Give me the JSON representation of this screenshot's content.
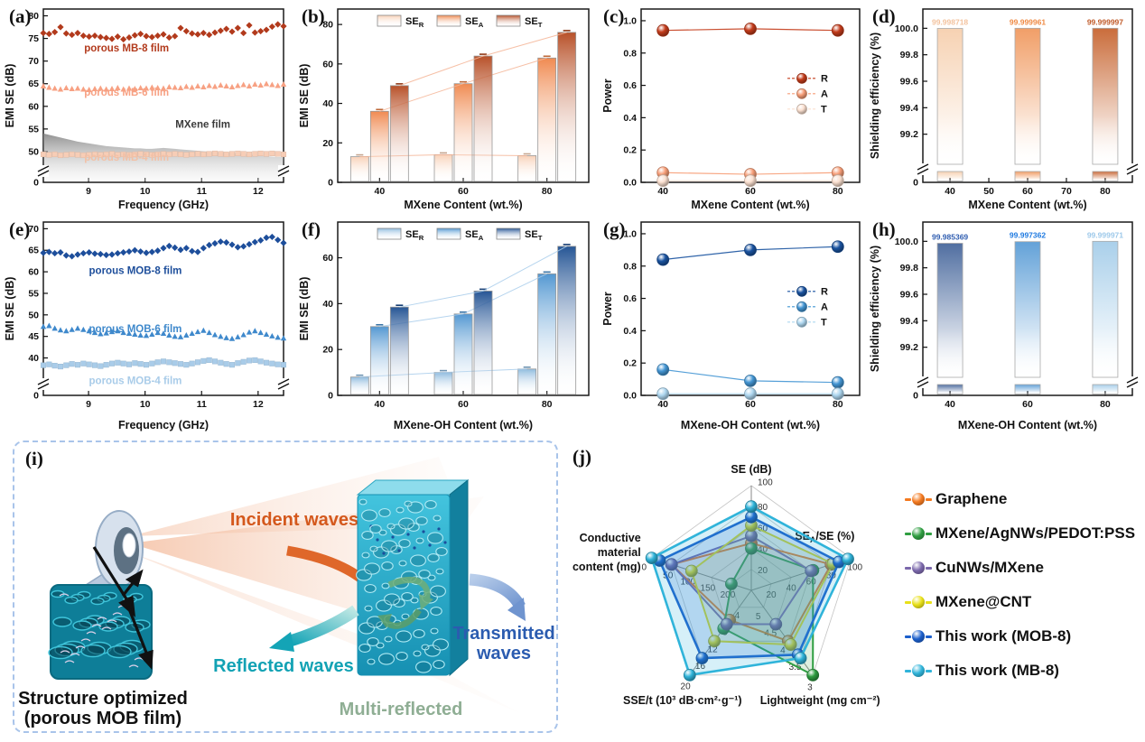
{
  "diagram": {
    "label": "(i)",
    "incident": "Incident waves",
    "reflected": "Reflected waves",
    "transmitted_line1": "Transmitted",
    "transmitted_line2": "waves",
    "multi_reflected": "Multi-reflected",
    "caption_line1": "Structure optimized",
    "caption_line2": "(porous MOB film)",
    "colors": {
      "incident": "#d4581c",
      "reflected": "#12a2b4",
      "transmitted": "#2b5cb0",
      "multi": "#8fae94",
      "border": "#a9c4ea"
    }
  },
  "chart_data": [
    {
      "id": "a",
      "type": "line",
      "panel": "(a)",
      "xlabel": "Frequency (GHz)",
      "ylabel": "EMI SE (dB)",
      "xrange": [
        8.2,
        12.45
      ],
      "xticks": [
        9,
        10,
        11,
        12
      ],
      "yticks": [
        50,
        55,
        60,
        65,
        70,
        75,
        80
      ],
      "yzero": "0",
      "ybreak": true,
      "series": [
        {
          "name": "porous MB-8  film",
          "marker": "diamond",
          "color": "#b23a1c",
          "values": [
            76.2,
            76.0,
            76.4,
            77.5,
            76.1,
            75.8,
            76.2,
            75.6,
            75.4,
            75.6,
            75.3,
            75.1,
            74.9,
            75.4,
            74.8,
            75.2,
            75.7,
            76.0,
            75.5,
            75.3,
            75.6,
            75.9,
            75.2,
            75.5,
            77.3,
            76.6,
            76.1,
            75.9,
            76.2,
            75.8,
            76.3,
            76.7,
            77.1,
            76.5,
            77.3,
            76.2,
            77.9,
            76.3,
            76.6,
            76.9,
            77.6,
            78.1,
            77.7
          ]
        },
        {
          "name": "porous MB-6 film",
          "marker": "triangle",
          "color": "#f7a183",
          "values": [
            64.5,
            64.2,
            64.0,
            63.8,
            64.1,
            63.9,
            64.0,
            63.8,
            63.7,
            63.9,
            64.0,
            63.8,
            63.9,
            64.1,
            63.8,
            64.0,
            63.9,
            64.1,
            64.0,
            64.2,
            64.1,
            64.0,
            64.3,
            64.2,
            64.1,
            64.4,
            64.2,
            64.5,
            64.3,
            64.6,
            64.4,
            64.7,
            64.5,
            64.3,
            64.6,
            64.8,
            64.5,
            64.9,
            64.7,
            65.0,
            64.8,
            64.6,
            64.9
          ]
        },
        {
          "name": "MXene film",
          "marker": "area",
          "color": "#8a8a8a",
          "values": [
            54.0,
            53.7,
            53.4,
            53.1,
            52.8,
            52.5,
            52.2,
            52.0,
            51.8,
            51.6,
            51.4,
            51.2,
            51.1,
            51.0,
            50.9,
            50.8,
            50.7,
            50.7,
            50.6,
            50.6,
            50.7,
            50.8,
            50.7,
            50.6,
            50.5,
            50.4,
            50.3,
            50.2,
            50.1,
            50.0,
            49.9,
            49.9,
            49.8,
            49.7,
            49.6,
            49.5,
            49.4,
            49.2,
            49.1,
            49.0,
            48.9,
            48.8,
            48.8
          ]
        },
        {
          "name": "porous MB-4  film",
          "marker": "square",
          "color": "#f7cdb6",
          "values": [
            49.4,
            49.3,
            49.4,
            49.2,
            49.3,
            49.4,
            49.3,
            49.2,
            49.3,
            49.4,
            49.3,
            49.4,
            49.5,
            49.3,
            49.4,
            49.3,
            49.4,
            49.5,
            49.4,
            49.3,
            49.4,
            49.5,
            49.4,
            49.5,
            49.4,
            49.3,
            49.4,
            49.5,
            49.4,
            49.5,
            49.6,
            49.5,
            49.4,
            49.5,
            49.6,
            49.5,
            49.4,
            49.5,
            49.6,
            49.5,
            49.6,
            49.5,
            49.4
          ]
        }
      ],
      "annotations": [
        {
          "text": "porous MB-8  film",
          "color": "#b23a1c",
          "fx": 0.17,
          "fy": 0.245
        },
        {
          "text": "porous MB-6 film",
          "color": "#f7a183",
          "fx": 0.17,
          "fy": 0.5
        },
        {
          "text": "MXene  film",
          "color": "#3a3a3a",
          "fx": 0.55,
          "fy": 0.685
        },
        {
          "text": "porous MB-4  film",
          "color": "#f2c0a6",
          "fx": 0.17,
          "fy": 0.875
        }
      ]
    },
    {
      "id": "b",
      "type": "bars",
      "panel": "(b)",
      "xlabel": "MXene Content (wt.%)",
      "ylabel": "EMI SE (dB)",
      "categories": [
        40,
        60,
        80
      ],
      "yticks": [
        0,
        20,
        40,
        60,
        80
      ],
      "ymax": 86,
      "connector_color": "#f5b596",
      "series": [
        {
          "name": "SE_R",
          "color": "#f8cfb4",
          "values": [
            13,
            14,
            13.5
          ]
        },
        {
          "name": "SE_A",
          "color": "#ef8448",
          "values": [
            36,
            50,
            63
          ]
        },
        {
          "name": "SE_T",
          "color": "#b4481e",
          "values": [
            49,
            64,
            76
          ]
        }
      ]
    },
    {
      "id": "c",
      "type": "power",
      "panel": "(c)",
      "xlabel": "MXene Content (wt.%)",
      "ylabel": "Power",
      "categories": [
        40,
        60,
        80
      ],
      "yticks": [
        0.0,
        0.2,
        0.4,
        0.6,
        0.8,
        1.0
      ],
      "series": [
        {
          "name": "R",
          "color": "#c43c1b",
          "values": [
            0.94,
            0.95,
            0.94
          ]
        },
        {
          "name": "A",
          "color": "#f79e78",
          "values": [
            0.06,
            0.05,
            0.06
          ]
        },
        {
          "name": "T",
          "color": "#fbe0d0",
          "values": [
            0.01,
            0.01,
            0.01
          ]
        }
      ]
    },
    {
      "id": "d",
      "type": "eff",
      "panel": "(d)",
      "xlabel": "MXene Content (wt.%)",
      "ylabel": "Shielding efficiency (%)",
      "xticks": [
        40,
        50,
        60,
        70,
        80
      ],
      "categories": [
        40,
        60,
        80
      ],
      "yticks": [
        99.2,
        99.4,
        99.6,
        99.8,
        100.0
      ],
      "yzero": "0",
      "ybreak": true,
      "values": [
        99.998718,
        99.999961,
        99.999997
      ],
      "labels": [
        "99.998718",
        "99.999961",
        "99.999997"
      ],
      "colors": [
        "#f6cfae",
        "#f0995f",
        "#c76531"
      ],
      "label_colors": [
        "#f3c29e",
        "#ef8a44",
        "#c05a28"
      ]
    },
    {
      "id": "e",
      "type": "line",
      "panel": "(e)",
      "xlabel": "Frequency (GHz)",
      "ylabel": "EMI SE (dB)",
      "xrange": [
        8.2,
        12.45
      ],
      "xticks": [
        9,
        10,
        11,
        12
      ],
      "yticks": [
        40,
        45,
        50,
        55,
        60,
        65,
        70
      ],
      "yzero": "0",
      "ybreak": true,
      "series": [
        {
          "name": "porous MOB-8  film",
          "marker": "diamond",
          "color": "#1d4e9b",
          "values": [
            64.4,
            64.6,
            64.3,
            64.5,
            63.8,
            63.6,
            64.0,
            64.3,
            64.5,
            64.2,
            64.1,
            63.9,
            64.0,
            64.3,
            64.5,
            64.7,
            65.0,
            64.7,
            64.4,
            64.6,
            64.9,
            65.5,
            66.0,
            65.6,
            65.1,
            65.5,
            64.8,
            64.6,
            65.5,
            66.2,
            66.6,
            67.0,
            66.8,
            66.3,
            65.7,
            65.9,
            66.4,
            66.9,
            67.3,
            67.9,
            68.1,
            67.4,
            66.7
          ]
        },
        {
          "name": "porous MOB-6 film",
          "marker": "triangle",
          "color": "#3f89cc",
          "values": [
            47.3,
            47.5,
            46.9,
            46.5,
            46.3,
            46.6,
            46.9,
            46.6,
            46.3,
            45.9,
            45.6,
            45.8,
            46.1,
            46.3,
            45.9,
            45.7,
            45.5,
            45.3,
            45.2,
            45.5,
            45.9,
            45.7,
            45.3,
            45.0,
            44.9,
            45.3,
            45.7,
            46.1,
            46.4,
            45.9,
            45.4,
            45.0,
            44.7,
            44.5,
            44.9,
            45.4,
            46.0,
            46.3,
            45.9,
            45.5,
            45.1,
            44.8,
            44.6
          ]
        },
        {
          "name": "porous MOB-4 film",
          "marker": "square",
          "color": "#a9cce9",
          "values": [
            38.3,
            38.5,
            38.2,
            38.0,
            38.3,
            38.6,
            38.4,
            38.7,
            38.5,
            38.3,
            38.1,
            38.4,
            38.7,
            38.9,
            38.7,
            38.5,
            38.8,
            38.6,
            38.4,
            38.7,
            39.0,
            39.2,
            39.0,
            38.8,
            38.6,
            38.4,
            38.7,
            39.0,
            39.3,
            39.5,
            39.2,
            38.9,
            38.6,
            38.4,
            38.8,
            39.1,
            39.4,
            39.5,
            39.2,
            38.9,
            38.7,
            38.5,
            38.4
          ]
        }
      ],
      "annotations": [
        {
          "text": "porous MOB-8  film",
          "color": "#1d4e9b",
          "fx": 0.19,
          "fy": 0.3
        },
        {
          "text": "porous MOB-6 film",
          "color": "#3f89cc",
          "fx": 0.19,
          "fy": 0.635
        },
        {
          "text": "porous MOB-4 film",
          "color": "#a9cce9",
          "fx": 0.19,
          "fy": 0.935
        }
      ]
    },
    {
      "id": "f",
      "type": "bars",
      "panel": "(f)",
      "xlabel": "MXene-OH Content (wt.%)",
      "ylabel": "EMI SE (dB)",
      "categories": [
        40,
        60,
        80
      ],
      "yticks": [
        0,
        20,
        40,
        60
      ],
      "ymax": 74,
      "connector_color": "#a8cdeb",
      "series": [
        {
          "name": "SE_R",
          "color": "#8ab8dd",
          "values": [
            8,
            10,
            11.5
          ]
        },
        {
          "name": "SE_A",
          "color": "#4a92cf",
          "values": [
            30,
            35.5,
            53
          ]
        },
        {
          "name": "SE_T",
          "color": "#1b4d90",
          "values": [
            38.5,
            45.5,
            65
          ]
        }
      ]
    },
    {
      "id": "g",
      "type": "power",
      "panel": "(g)",
      "xlabel": "MXene-OH Content (wt.%)",
      "ylabel": "Power",
      "categories": [
        40,
        60,
        80
      ],
      "yticks": [
        0.0,
        0.2,
        0.4,
        0.6,
        0.8,
        1.0
      ],
      "series": [
        {
          "name": "R",
          "color": "#1a53a0",
          "values": [
            0.84,
            0.9,
            0.92
          ]
        },
        {
          "name": "A",
          "color": "#4496d4",
          "values": [
            0.16,
            0.09,
            0.08
          ]
        },
        {
          "name": "T",
          "color": "#aed7f0",
          "values": [
            0.01,
            0.01,
            0.01
          ]
        }
      ]
    },
    {
      "id": "h",
      "type": "eff",
      "panel": "(h)",
      "xlabel": "MXene-OH Content (wt.%)",
      "ylabel": "Shielding efficiency (%)",
      "xticks": [
        40,
        60,
        80
      ],
      "categories": [
        40,
        60,
        80
      ],
      "yticks": [
        99.2,
        99.4,
        99.6,
        99.8,
        100.0
      ],
      "yzero": "0",
      "ybreak": true,
      "values": [
        99.985369,
        99.997362,
        99.999971
      ],
      "labels": [
        "99.985369",
        "99.997362",
        "99.999971"
      ],
      "colors": [
        "#47679c",
        "#5b9dd6",
        "#a5cde9"
      ],
      "label_colors": [
        "#2f5db0",
        "#1f7ae0",
        "#9ec9ea"
      ]
    },
    {
      "id": "j",
      "type": "radar",
      "panel": "(j)",
      "axes": [
        {
          "label": "SE (dB)",
          "ticks": [
            "20",
            "40",
            "60",
            "80",
            "100"
          ],
          "center": 0,
          "vertex": 100
        },
        {
          "label": "SE_A/SE (%)",
          "ticks": [
            "20",
            "40",
            "60",
            "80",
            "100"
          ],
          "center": 0,
          "vertex": 100
        },
        {
          "label": "Lightweight (mg cm⁻²)",
          "ticks": [
            "5",
            "4.5",
            "4",
            "3.5",
            "3"
          ],
          "center": 5.5,
          "vertex": 3
        },
        {
          "label": "SSE/t (10³ dB·cm²·g⁻¹)",
          "ticks": [
            "4",
            "8",
            "12",
            "16",
            "20"
          ],
          "center": 0,
          "vertex": 20
        },
        {
          "label": "Conductive material content (mg)",
          "ticks": [
            "200",
            "150",
            "100",
            "50",
            "0"
          ],
          "center": 250,
          "vertex": 0
        }
      ],
      "series": [
        {
          "name": "Graphene",
          "color": "#f47a20",
          "fill_opacity": 0.06,
          "line_width": 2,
          "values": [
            45,
            80,
            4.0,
            7,
            50
          ]
        },
        {
          "name": "MXene/AgNWs/PEDOT:PSS",
          "color": "#2f9e41",
          "fill_opacity": 0.16,
          "line_width": 2,
          "values": [
            40,
            62,
            3.0,
            9,
            200
          ]
        },
        {
          "name": "CuNWs/MXene",
          "color": "#7b68ab",
          "fill_opacity": 0.08,
          "line_width": 2,
          "values": [
            52,
            60,
            4.5,
            8,
            50
          ]
        },
        {
          "name": "MXene@CNT",
          "color": "#e8e019",
          "fill_opacity": 0.12,
          "line_width": 2,
          "values": [
            62,
            82,
            3.9,
            12,
            100
          ]
        },
        {
          "name": "This work (MOB-8)",
          "color": "#1c5fcb",
          "fill_opacity": 0.2,
          "line_width": 2.6,
          "values": [
            70,
            88,
            3.6,
            16,
            20
          ]
        },
        {
          "name": "This work (MB-8)",
          "color": "#30b4da",
          "fill_opacity": 0.2,
          "line_width": 2.6,
          "values": [
            80,
            97,
            3.5,
            20,
            0
          ]
        }
      ]
    }
  ]
}
